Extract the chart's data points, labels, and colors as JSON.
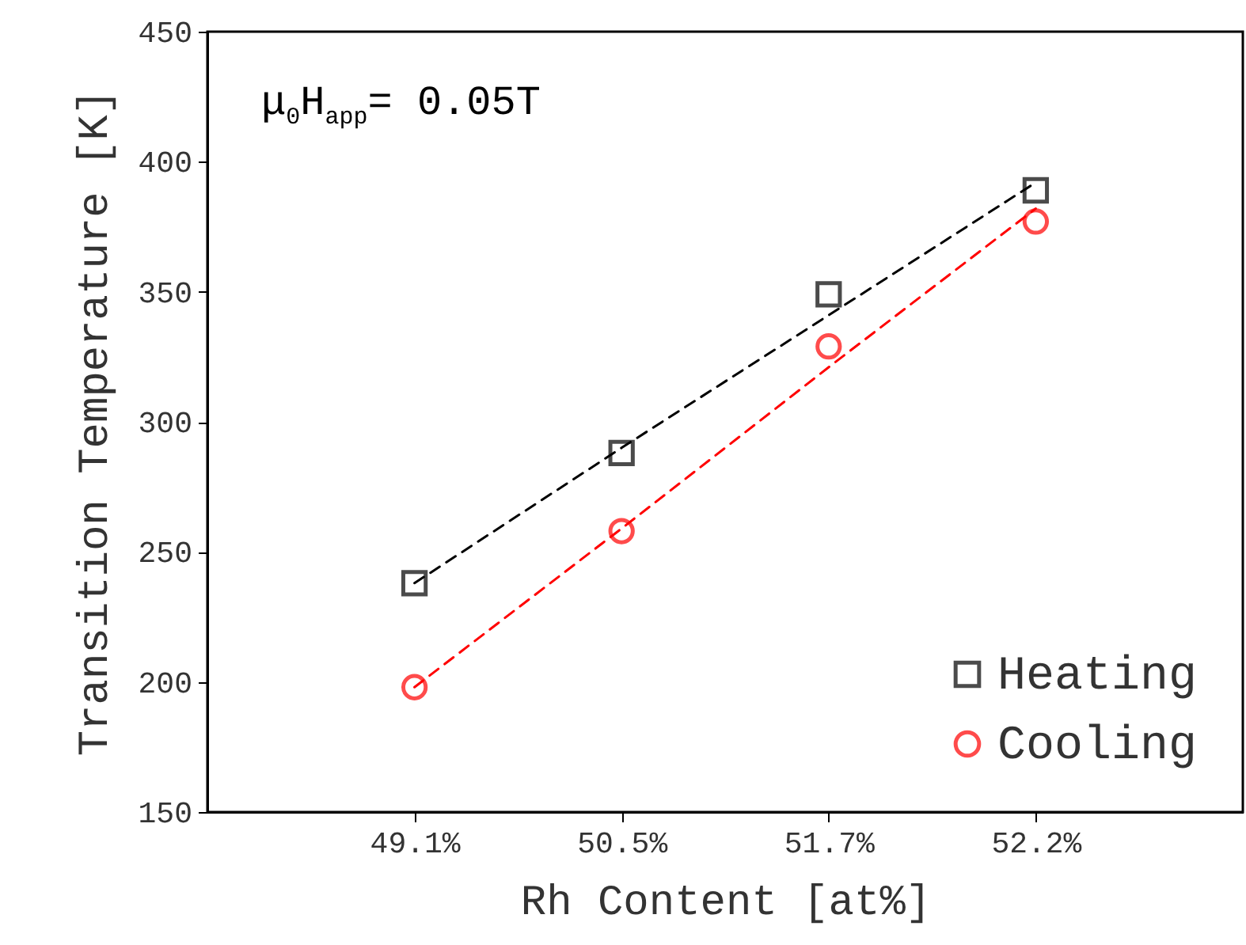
{
  "chart_data": {
    "type": "scatter",
    "xlabel": "Rh Content [at%]",
    "ylabel": "Transition Temperature [K]",
    "categories": [
      "49.1%",
      "50.5%",
      "51.7%",
      "52.2%"
    ],
    "ylim": [
      150,
      450
    ],
    "yticks": [
      150,
      200,
      250,
      300,
      350,
      400,
      450
    ],
    "annotations": [
      "μ$_{0}$H$_{app}$= 0.05T"
    ],
    "grid": false,
    "legend": "bottom right",
    "series": [
      {
        "name": "Heating",
        "marker": "square",
        "color": "#000000",
        "values": [
          238,
          288,
          349,
          389
        ]
      },
      {
        "name": "Cooling",
        "marker": "circle",
        "color": "#ff0000",
        "values": [
          198,
          258,
          329,
          377
        ]
      },
      {
        "type": "line",
        "line_style": "dashed",
        "color": "#000000",
        "values": [
          238,
          290,
          341,
          392
        ]
      },
      {
        "type": "line",
        "line_style": "dashed",
        "color": "#ff0000",
        "values": [
          198,
          259,
          321,
          382
        ]
      }
    ]
  }
}
